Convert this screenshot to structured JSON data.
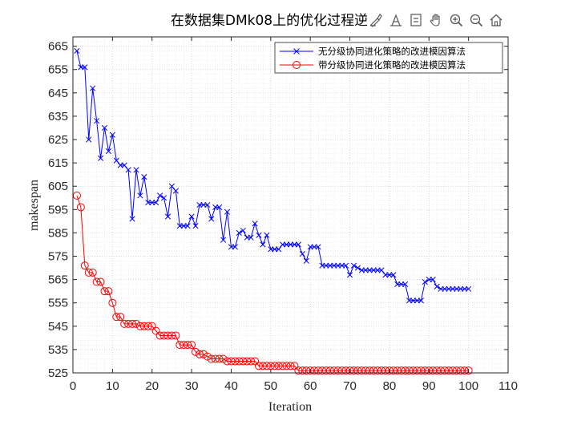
{
  "chart_data": {
    "type": "line",
    "title": "在数据集DMk08上的优化过程逆",
    "xlabel": "Iteration",
    "ylabel": "makespan",
    "xlim": [
      0,
      110
    ],
    "ylim": [
      525,
      669
    ],
    "xticks": [
      0,
      10,
      20,
      30,
      40,
      50,
      60,
      70,
      80,
      90,
      100,
      110
    ],
    "yticks": [
      525,
      535,
      545,
      555,
      565,
      575,
      585,
      595,
      605,
      615,
      625,
      635,
      645,
      655,
      665
    ],
    "grid": "major and minor, dotted",
    "legend_position": "top-right",
    "x": [
      1,
      2,
      3,
      4,
      5,
      6,
      7,
      8,
      9,
      10,
      11,
      12,
      13,
      14,
      15,
      16,
      17,
      18,
      19,
      20,
      21,
      22,
      23,
      24,
      25,
      26,
      27,
      28,
      29,
      30,
      31,
      32,
      33,
      34,
      35,
      36,
      37,
      38,
      39,
      40,
      41,
      42,
      43,
      44,
      45,
      46,
      47,
      48,
      49,
      50,
      51,
      52,
      53,
      54,
      55,
      56,
      57,
      58,
      59,
      60,
      61,
      62,
      63,
      64,
      65,
      66,
      67,
      68,
      69,
      70,
      71,
      72,
      73,
      74,
      75,
      76,
      77,
      78,
      79,
      80,
      81,
      82,
      83,
      84,
      85,
      86,
      87,
      88,
      89,
      90,
      91,
      92,
      93,
      94,
      95,
      96,
      97,
      98,
      99,
      100
    ],
    "series": [
      {
        "name": "无分级协同进化策略的改进模因算法",
        "color": "#0000ff",
        "marker": "x",
        "values": [
          663,
          656,
          656,
          625,
          647,
          633,
          617,
          630,
          620,
          627,
          616,
          614,
          614,
          612,
          591,
          612,
          601,
          609,
          598,
          598,
          598,
          601,
          600,
          592,
          605,
          603,
          588,
          588,
          588,
          592,
          588,
          597,
          597,
          597,
          591,
          596,
          596,
          582,
          594,
          579,
          579,
          585,
          586,
          583,
          583,
          589,
          584,
          580,
          584,
          578,
          578,
          578,
          580,
          580,
          580,
          580,
          580,
          576,
          573,
          579,
          579,
          579,
          571,
          571,
          571,
          571,
          571,
          571,
          571,
          567,
          571,
          570,
          569,
          569,
          569,
          569,
          569,
          569,
          567,
          567,
          567,
          563,
          563,
          563,
          556,
          556,
          556,
          556,
          564,
          565,
          565,
          562,
          561,
          561,
          561,
          561,
          561,
          561,
          561,
          561
        ]
      },
      {
        "name": "带分级协同进化策略的改进模因算法",
        "color": "#ff0000",
        "marker": "o",
        "values": [
          601,
          596,
          571,
          568,
          568,
          564,
          564,
          560,
          560,
          555,
          549,
          549,
          546,
          546,
          546,
          546,
          545,
          545,
          545,
          545,
          543,
          541,
          541,
          541,
          541,
          541,
          537,
          537,
          537,
          537,
          534,
          533,
          533,
          532,
          531,
          531,
          531,
          531,
          530,
          530,
          530,
          530,
          530,
          530,
          530,
          530,
          528,
          528,
          528,
          528,
          528,
          528,
          528,
          528,
          528,
          528,
          526,
          526,
          526,
          526,
          526,
          526,
          526,
          526,
          526,
          526,
          526,
          526,
          526,
          526,
          526,
          526,
          526,
          526,
          526,
          526,
          526,
          526,
          526,
          526,
          526,
          526,
          526,
          526,
          526,
          526,
          526,
          526,
          526,
          526,
          526,
          526,
          526,
          526,
          526,
          526,
          526,
          526,
          526,
          526
        ]
      }
    ]
  },
  "toolbar": {
    "icons": [
      "brush-icon",
      "data-tips-icon",
      "legend-toggle-icon",
      "pan-hand-icon",
      "zoom-in-icon",
      "zoom-out-icon",
      "home-icon"
    ]
  }
}
